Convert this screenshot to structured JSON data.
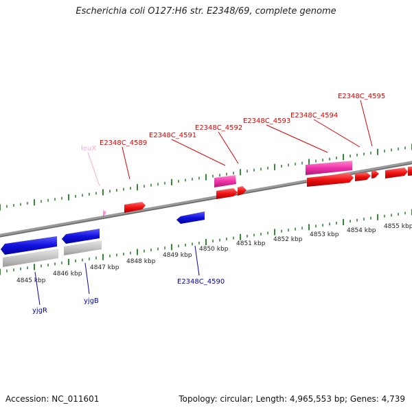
{
  "title": "Escherichia coli O127:H6 str. E2348/69, complete genome",
  "footer": {
    "accession": "Accession: NC_011601",
    "summary": "Topology: circular; Length: 4,965,553 bp; Genes: 4,739"
  },
  "colors": {
    "backbone": "#8a8a8a",
    "tick": "#2e8b2e",
    "forward_gene": "#ee1111",
    "forward_rna": "#ee33aa",
    "forward_rna_label": "#f8a8d0",
    "reverse_gene": "#1111dd",
    "reverse_label": "#0000aa",
    "shadow": "#c4c4c4",
    "forward_label": "#dd0000"
  },
  "axis_labels": [
    "4845 kbp",
    "4846 kbp",
    "4847 kbp",
    "4848 kbp",
    "4849 kbp",
    "4850 kbp",
    "4851 kbp",
    "4852 kbp",
    "4853 kbp",
    "4854 kbp",
    "4855 kbp"
  ],
  "forward_labels": [
    {
      "text": "leuX",
      "kind": "rna"
    },
    {
      "text": "E2348C_4589",
      "kind": "gene"
    },
    {
      "text": "E2348C_4591",
      "kind": "gene"
    },
    {
      "text": "E2348C_4592",
      "kind": "gene"
    },
    {
      "text": "E2348C_4593",
      "kind": "gene"
    },
    {
      "text": "E2348C_4594",
      "kind": "gene"
    },
    {
      "text": "E2348C_4595",
      "kind": "gene"
    }
  ],
  "reverse_labels": [
    {
      "text": "yjgR"
    },
    {
      "text": "yjgB"
    },
    {
      "text": "E2348C_4590"
    }
  ]
}
